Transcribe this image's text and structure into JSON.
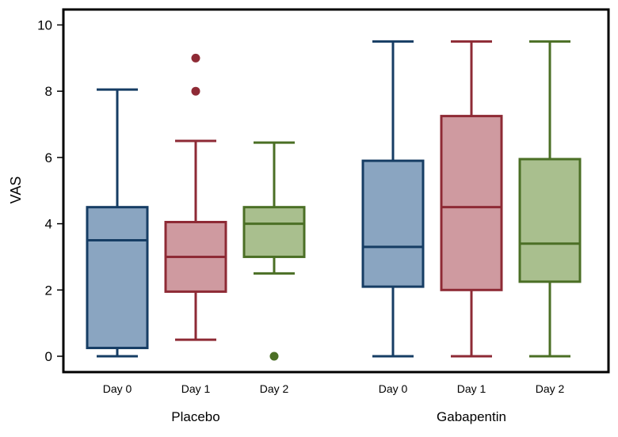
{
  "chart_data": {
    "type": "box",
    "ylabel": "VAS",
    "ylim": [
      0,
      10
    ],
    "yticks": [
      0,
      2,
      4,
      6,
      8,
      10
    ],
    "groups": [
      {
        "label": "Placebo",
        "boxes": [
          {
            "category": "Day 0",
            "min": 0,
            "q1": 0.25,
            "median": 3.5,
            "q3": 4.5,
            "max": 8.05,
            "outliers": [],
            "color": "#163d64",
            "fill": "#8aa5c1"
          },
          {
            "category": "Day 1",
            "min": 0.5,
            "q1": 1.95,
            "median": 3.0,
            "q3": 4.05,
            "max": 6.5,
            "outliers": [
              8,
              9
            ],
            "color": "#8e2a35",
            "fill": "#cf9aa0"
          },
          {
            "category": "Day 2",
            "min": 2.5,
            "q1": 3.0,
            "median": 4.0,
            "q3": 4.5,
            "max": 6.45,
            "outliers": [
              0
            ],
            "color": "#4b6f25",
            "fill": "#a9bf8e"
          }
        ]
      },
      {
        "label": "Gabapentin",
        "boxes": [
          {
            "category": "Day 0",
            "min": 0,
            "q1": 2.1,
            "median": 3.3,
            "q3": 5.9,
            "max": 9.5,
            "outliers": [],
            "color": "#163d64",
            "fill": "#8aa5c1"
          },
          {
            "category": "Day 1",
            "min": 0,
            "q1": 2.0,
            "median": 4.5,
            "q3": 7.25,
            "max": 9.5,
            "outliers": [],
            "color": "#8e2a35",
            "fill": "#cf9aa0"
          },
          {
            "category": "Day 2",
            "min": 0,
            "q1": 2.25,
            "median": 3.4,
            "q3": 5.95,
            "max": 9.5,
            "outliers": [],
            "color": "#4b6f25",
            "fill": "#a9bf8e"
          }
        ]
      }
    ],
    "grid": false,
    "legend": "none"
  }
}
